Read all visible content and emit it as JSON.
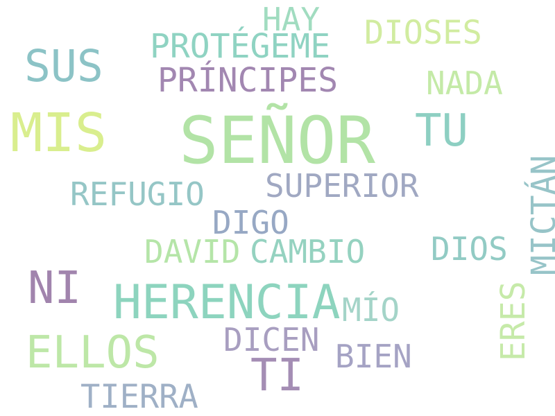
{
  "words": [
    {
      "text": "SEÑOR",
      "color": "#b2e3a6"
    },
    {
      "text": "MIS",
      "color": "#d9ee8e"
    },
    {
      "text": "HERENCIA",
      "color": "#8dd4be"
    },
    {
      "text": "SUS",
      "color": "#8cc3c6"
    },
    {
      "text": "TU",
      "color": "#8dcfc2"
    },
    {
      "text": "NI",
      "color": "#a184ad"
    },
    {
      "text": "ELLOS",
      "color": "#bde7a7"
    },
    {
      "text": "TI",
      "color": "#a48db4"
    },
    {
      "text": "PRÍNCIPES",
      "color": "#a287b1"
    },
    {
      "text": "PROTÉGEME",
      "color": "#8fd3c2"
    },
    {
      "text": "HAY",
      "color": "#a1dcc0"
    },
    {
      "text": "DIOSES",
      "color": "#d1eca0"
    },
    {
      "text": "NADA",
      "color": "#c4eaa7"
    },
    {
      "text": "REFUGIO",
      "color": "#95c6c6"
    },
    {
      "text": "SUPERIOR",
      "color": "#a0a8c2"
    },
    {
      "text": "DIGO",
      "color": "#97a8c4"
    },
    {
      "text": "DAVID",
      "color": "#b5e5a8"
    },
    {
      "text": "CAMBIO",
      "color": "#95d2c0"
    },
    {
      "text": "DIOS",
      "color": "#92cbc4"
    },
    {
      "text": "MÍO",
      "color": "#a4d4c8"
    },
    {
      "text": "DICEN",
      "color": "#a89ec0"
    },
    {
      "text": "BIEN",
      "color": "#a5a3c4"
    },
    {
      "text": "TIERRA",
      "color": "#9fb0c6"
    },
    {
      "text": "MICTÁN",
      "color": "#97c4c8"
    },
    {
      "text": "ERES",
      "color": "#c6eaa9"
    }
  ]
}
